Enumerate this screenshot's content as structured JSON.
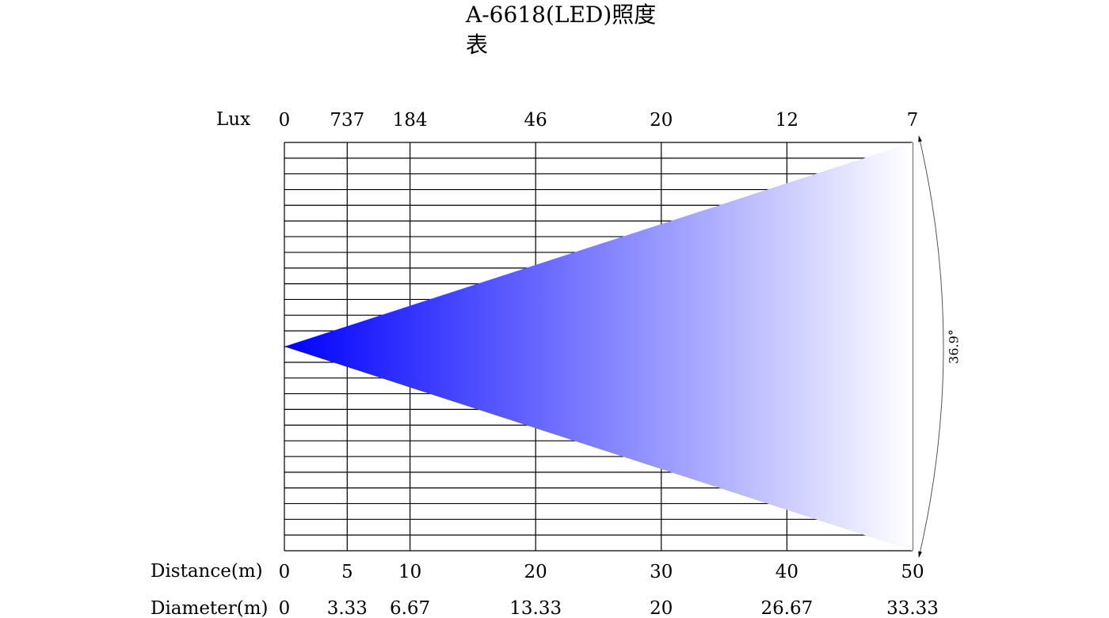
{
  "title": "A-6618(LED)照度表",
  "lux": {
    "label": "Lux",
    "values": [
      0,
      737,
      184,
      46,
      20,
      12,
      7
    ]
  },
  "distance": {
    "label": "Distance(m)",
    "values": [
      0,
      5,
      10,
      20,
      30,
      40,
      50
    ]
  },
  "diameter": {
    "label": "Diameter(m)",
    "values": [
      0,
      3.33,
      6.67,
      13.33,
      20,
      26.67,
      33.33
    ]
  },
  "angle": "36.9°"
}
